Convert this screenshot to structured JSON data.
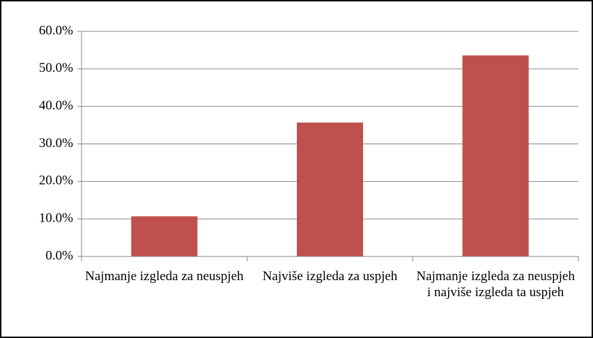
{
  "chart_data": {
    "type": "bar",
    "categories": [
      "Najmanje izgleda za neuspjeh",
      "Najviše izgleda za uspjeh",
      "Najmanje izgleda za neuspjeh i najviše izgleda ta uspjeh"
    ],
    "values": [
      10.7,
      35.7,
      53.6
    ],
    "color": "#c0504d",
    "ylim": [
      0,
      60
    ],
    "yticks": [
      {
        "value": 0,
        "label": "0.0%"
      },
      {
        "value": 10,
        "label": "10.0%"
      },
      {
        "value": 20,
        "label": "20.0%"
      },
      {
        "value": 30,
        "label": "30.0%"
      },
      {
        "value": 40,
        "label": "40.0%"
      },
      {
        "value": 50,
        "label": "50.0%"
      },
      {
        "value": 60,
        "label": "60.0%"
      }
    ],
    "grid": true
  }
}
